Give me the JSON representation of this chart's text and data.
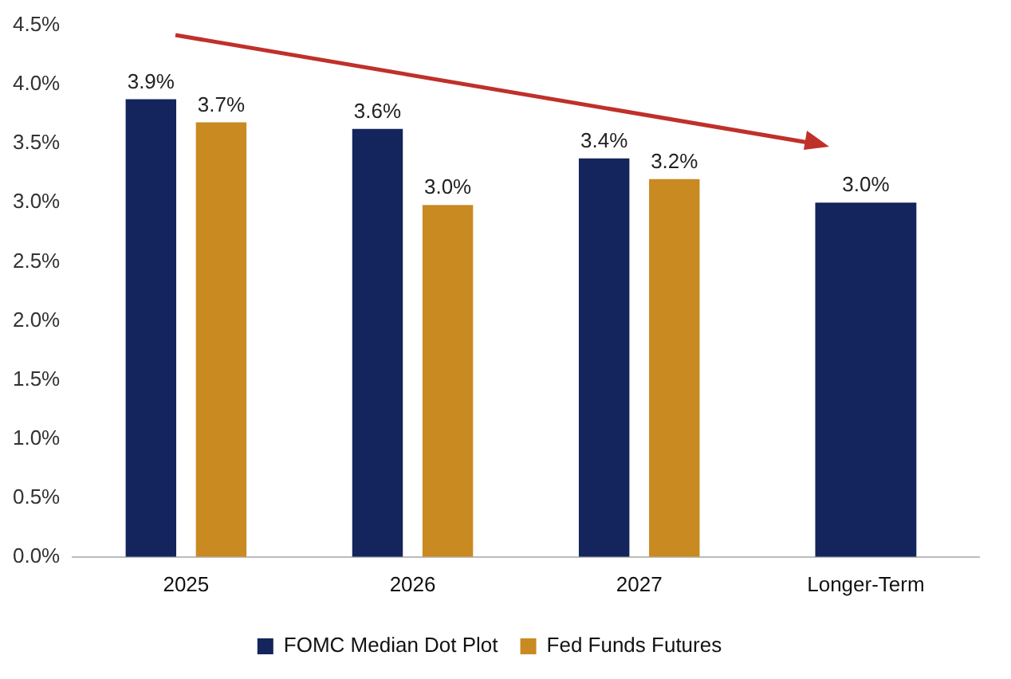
{
  "chart_data": {
    "type": "bar",
    "categories": [
      "2025",
      "2026",
      "2027",
      "Longer-Term"
    ],
    "series": [
      {
        "name": "FOMC Median Dot Plot",
        "color": "#14245c",
        "values": [
          3.875,
          3.625,
          3.375,
          3.0
        ],
        "value_labels": [
          "3.9%",
          "3.6%",
          "3.4%",
          "3.0%"
        ]
      },
      {
        "name": "Fed Funds Futures",
        "color": "#c98a22",
        "values": [
          3.68,
          2.98,
          3.2,
          null
        ],
        "value_labels": [
          "3.7%",
          "3.0%",
          "3.2%",
          null
        ]
      }
    ],
    "ylim": [
      0,
      4.5
    ],
    "yticks": [
      {
        "value": 0,
        "label": "0.0%"
      },
      {
        "value": 0.5,
        "label": "0.5%"
      },
      {
        "value": 1,
        "label": "1.0%"
      },
      {
        "value": 1.5,
        "label": "1.5%"
      },
      {
        "value": 2,
        "label": "2.0%"
      },
      {
        "value": 2.5,
        "label": "2.5%"
      },
      {
        "value": 3,
        "label": "3.0%"
      },
      {
        "value": 3.5,
        "label": "3.5%"
      },
      {
        "value": 4,
        "label": "4.0%"
      },
      {
        "value": 4.5,
        "label": "4.5%"
      }
    ],
    "grid": false,
    "legend": "bottom"
  }
}
